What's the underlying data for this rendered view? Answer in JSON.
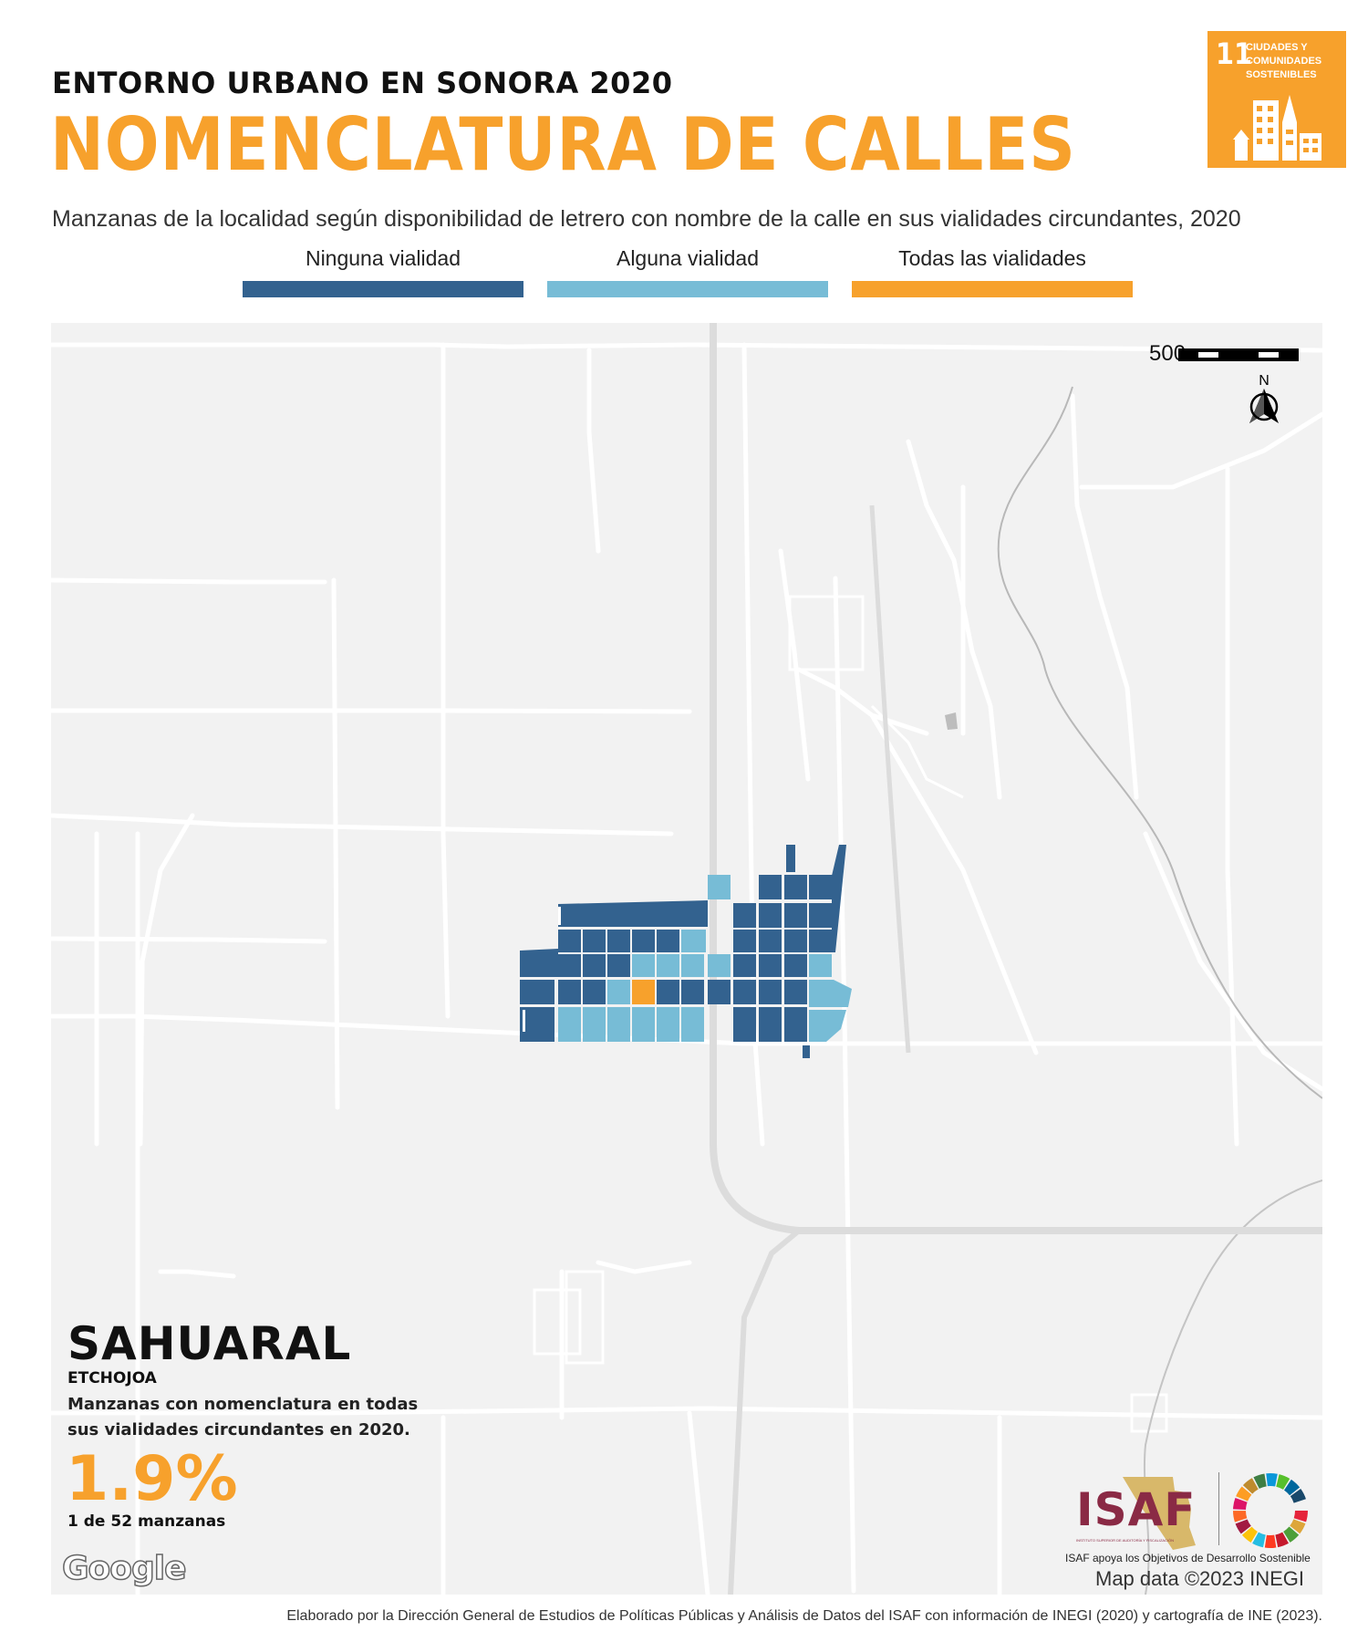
{
  "header": {
    "kicker": "ENTORNO URBANO EN SONORA 2020",
    "title": "NOMENCLATURA DE CALLES",
    "subtitle": "Manzanas de la localidad según disponibilidad de letrero con nombre de la calle en sus vialidades circundantes, 2020"
  },
  "sdg_badge": {
    "number": "11",
    "text": "CIUDADES Y COMUNIDADES SOSTENIBLES",
    "color": "#F7A12C",
    "icon": "city-buildings-icon"
  },
  "legend": {
    "items": [
      {
        "label": "Ninguna vialidad",
        "color": "#33628F"
      },
      {
        "label": "Alguna vialidad",
        "color": "#77BCD6"
      },
      {
        "label": "Todas las vialidades",
        "color": "#F7A12C"
      }
    ]
  },
  "map": {
    "scale_label": "500 m",
    "north_label": "N",
    "background_color": "#F2F2F2",
    "road_color": "#FFFFFF",
    "highway_color": "#DCDCDC",
    "blocks_total": 52,
    "blocks_all_streets": 1,
    "attribution": "Map data ©2023 INEGI",
    "provider_logo": "Google"
  },
  "locality": {
    "name": "SAHUARAL",
    "municipality": "ETCHOJOA",
    "description": "Manzanas con nomenclatura en todas sus vialidades circundantes en 2020.",
    "percent": "1.9%",
    "count_text": "1 de 52 manzanas"
  },
  "logos": {
    "isaf": "ISAF",
    "isaf_fine": "INSTITUTO SUPERIOR DE AUDITORÍA Y FISCALIZACIÓN",
    "caption": "ISAF apoya los Objetivos de Desarrollo Sostenible"
  },
  "footer": {
    "credit": "Elaborado por la Dirección General de Estudios de Políticas Públicas y Análisis de Datos del ISAF con información de INEGI (2020) y cartografía de INE (2023)."
  }
}
